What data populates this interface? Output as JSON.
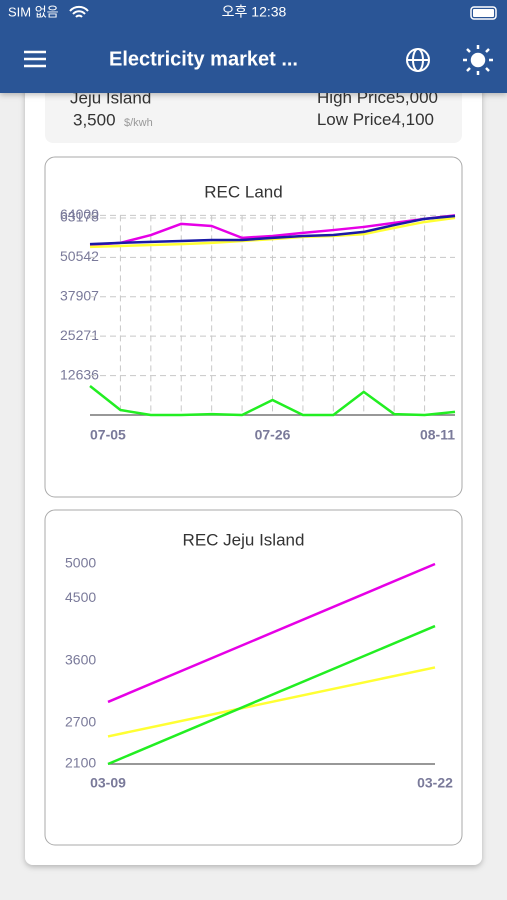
{
  "status_bar": {
    "carrier": "SIM 없음",
    "time": "오후 12:38"
  },
  "header": {
    "title": "Electricity market ..."
  },
  "summary": {
    "region": "Jeju Island",
    "price": "3,500",
    "unit": "$/kwh",
    "high_label": "High Price",
    "high": "5,000",
    "low_label": "Low Price",
    "low": "4,100"
  },
  "charts": [
    {
      "type": "line",
      "title": "REC Land",
      "categories": [
        "07-05",
        null,
        null,
        null,
        null,
        null,
        "07-26",
        null,
        null,
        null,
        null,
        null,
        "08-11"
      ],
      "series": [
        {
          "color": "#e600e6",
          "values": [
            54500,
            55200,
            57700,
            61300,
            60600,
            56800,
            57400,
            58400,
            59300,
            60300,
            61600,
            62900,
            64000
          ]
        },
        {
          "color": "#ffff33",
          "values": [
            53900,
            54200,
            54500,
            54800,
            55200,
            55800,
            56400,
            57100,
            57400,
            58000,
            60000,
            61900,
            63200
          ]
        },
        {
          "color": "#1a1aa6",
          "values": [
            54800,
            55200,
            55500,
            55800,
            56100,
            56100,
            56800,
            57400,
            57700,
            58700,
            60900,
            62900,
            63800
          ]
        },
        {
          "color": "#22ee22",
          "values": [
            9300,
            1600,
            0,
            0,
            300,
            0,
            4800,
            0,
            0,
            7400,
            300,
            0,
            1000
          ]
        }
      ],
      "ylim": [
        0,
        64000
      ],
      "yticks": [
        12636,
        25271,
        37907,
        50542,
        63178,
        64000
      ],
      "grid": true
    },
    {
      "type": "line",
      "title": "REC Jeju Island",
      "categories": [
        "03-09",
        "03-22"
      ],
      "series": [
        {
          "color": "#e600e6",
          "values": [
            3000,
            5000
          ]
        },
        {
          "color": "#ffff33",
          "values": [
            2500,
            3500
          ]
        },
        {
          "color": "#22ee22",
          "values": [
            2100,
            4100
          ]
        }
      ],
      "ylim": [
        2100,
        5000
      ],
      "yticks": [
        2100,
        2700,
        3600,
        4500,
        5000
      ],
      "grid": false
    }
  ]
}
